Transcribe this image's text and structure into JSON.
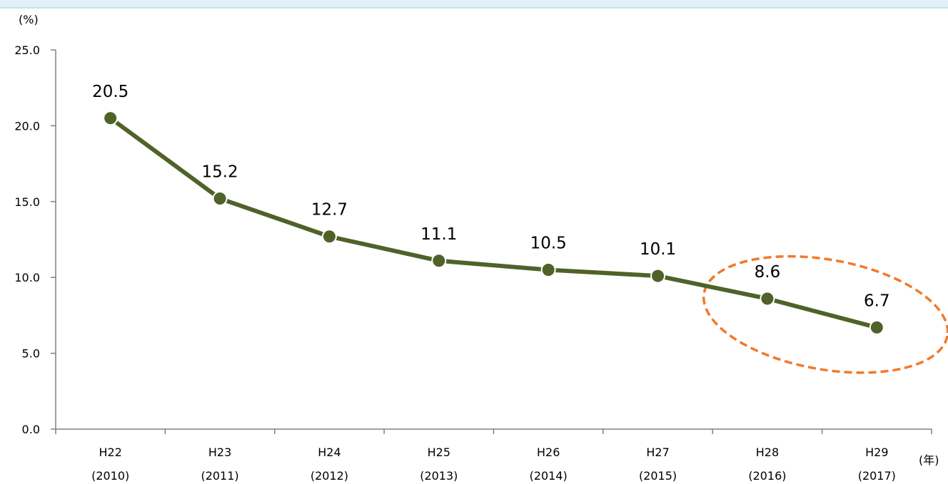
{
  "chart_data": {
    "type": "line",
    "y_unit": "(%)",
    "x_unit": "(年)",
    "categories": [
      [
        "H22",
        "(2010)"
      ],
      [
        "H23",
        "(2011)"
      ],
      [
        "H24",
        "(2012)"
      ],
      [
        "H25",
        "(2013)"
      ],
      [
        "H26",
        "(2014)"
      ],
      [
        "H27",
        "(2015)"
      ],
      [
        "H28",
        "(2016)"
      ],
      [
        "H29",
        "(2017)"
      ]
    ],
    "values": [
      20.5,
      15.2,
      12.7,
      11.1,
      10.5,
      10.1,
      8.6,
      6.7
    ],
    "data_labels": [
      "20.5",
      "15.2",
      "12.7",
      "11.1",
      "10.5",
      "10.1",
      "8.6",
      "6.7"
    ],
    "y_ticks": [
      "0.0",
      "5.0",
      "10.0",
      "15.0",
      "20.0",
      "25.0"
    ],
    "ylim": [
      0,
      25
    ],
    "grid": false,
    "legend": "none",
    "highlighted_categories": [
      6,
      7
    ],
    "colors": {
      "line": "#4f6228",
      "marker": "#4f6228",
      "highlight": "#f07a2a",
      "axis": "#808080",
      "banner": "#dff0f6"
    }
  }
}
